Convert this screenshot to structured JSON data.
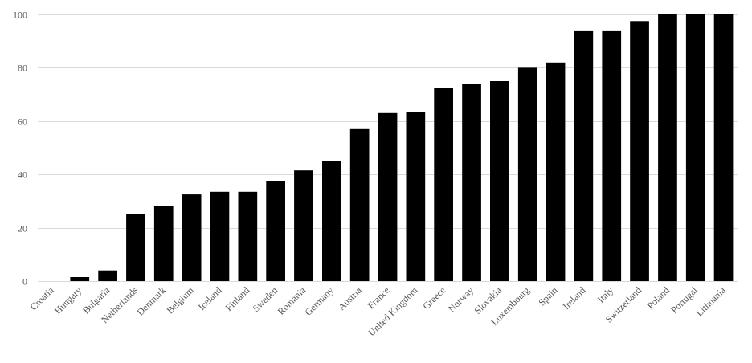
{
  "chart_data": {
    "type": "bar",
    "title": "",
    "xlabel": "",
    "ylabel": "",
    "ylim": [
      0,
      100
    ],
    "yticks": [
      0,
      20,
      40,
      60,
      80,
      100
    ],
    "grid": true,
    "legend": "none",
    "bar_color": "#000000",
    "grid_color": "#d9d9d9",
    "label_color": "#595959",
    "categories": [
      "Croatia",
      "Hungary",
      "Bulgaria",
      "Netherlands",
      "Denmark",
      "Belgium",
      "Iceland",
      "Finland",
      "Sweden",
      "Romania",
      "Germany",
      "Austria",
      "France",
      "United Kingdom",
      "Greece",
      "Norway",
      "Slovakia",
      "Luxembourg",
      "Spain",
      "Ireland",
      "Italy",
      "Switzerland",
      "Poland",
      "Portugal",
      "Lithuania"
    ],
    "values": [
      0,
      1.5,
      4,
      25,
      28,
      32.5,
      33.5,
      33.5,
      37.5,
      41.5,
      45,
      57,
      63,
      63.5,
      72.5,
      74,
      75,
      80,
      82,
      94,
      94,
      97.5,
      100,
      100,
      100
    ]
  }
}
